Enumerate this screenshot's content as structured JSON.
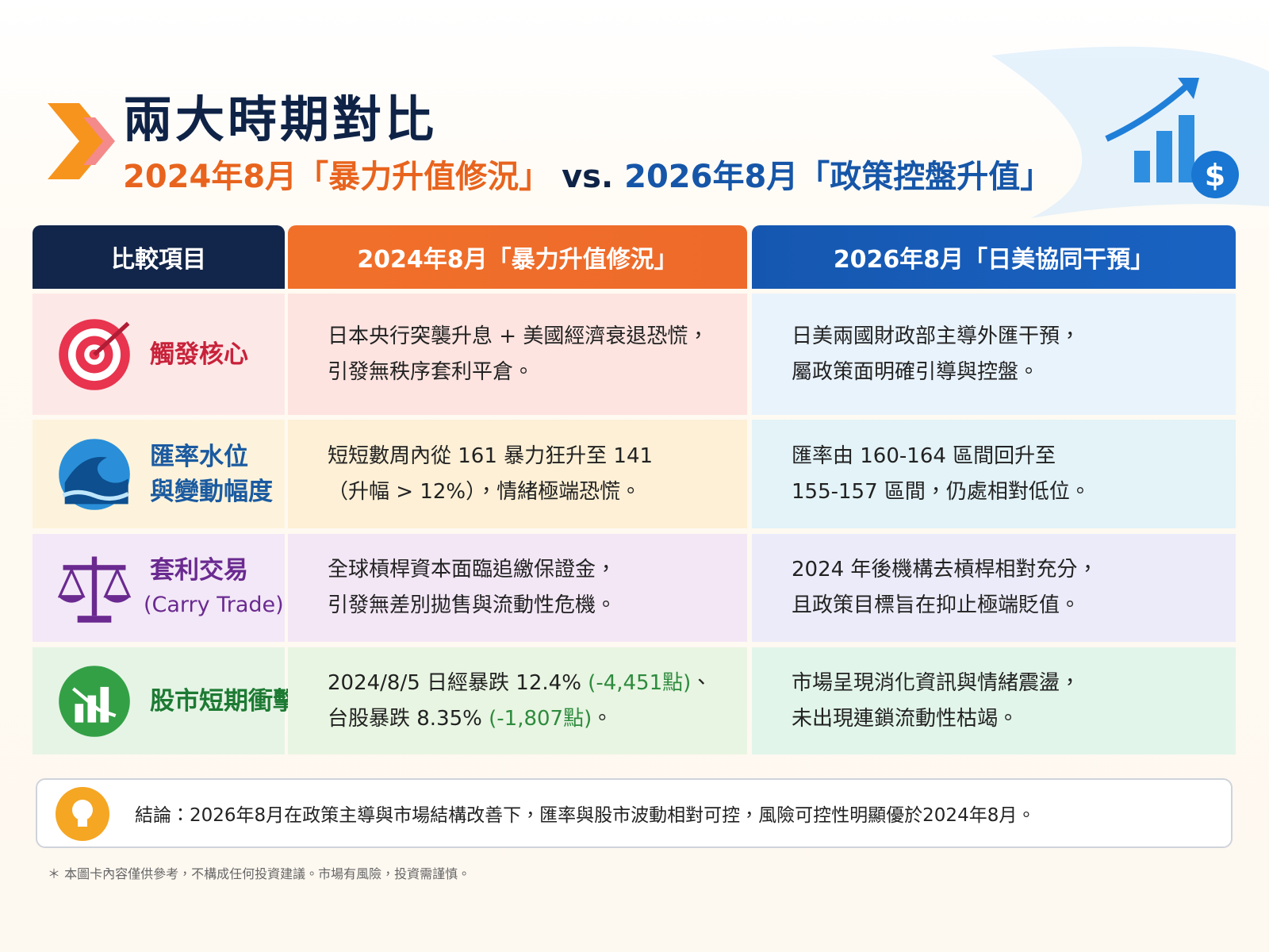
{
  "header": {
    "title": "兩大時期對比",
    "subtitle": [
      "2024年8月「暴力升值修況」",
      "vs.",
      "2026年8月「政策控盤升值」"
    ]
  },
  "table": {
    "columns": [
      "比較項目",
      "2024年8月「暴力升值修況」",
      "2026年8月「日美協同干預」"
    ],
    "highlight_color": "#2e8b3e",
    "rows": [
      {
        "label": [
          "觸發核心"
        ],
        "left": [
          [
            "日本央行突襲升息 + 美國經濟衰退恐慌，"
          ],
          [
            "引發無秩序套利平倉。"
          ]
        ],
        "right": [
          [
            "日美兩國財政部主導外匯干預，"
          ],
          [
            "屬政策面明確引導與控盤。"
          ]
        ]
      },
      {
        "label": [
          "匯率水位",
          "與變動幅度"
        ],
        "left": [
          [
            "短短數周內從 161 暴力狂升至 141"
          ],
          [
            "（升幅 > 12%），情緒極端恐慌。"
          ]
        ],
        "right": [
          [
            "匯率由 160-164 區間回升至"
          ],
          [
            "155-157 區間，仍處相對低位。"
          ]
        ]
      },
      {
        "label": [
          "套利交易",
          "(Carry Trade)"
        ],
        "left": [
          [
            "全球槓桿資本面臨追繳保證金，"
          ],
          [
            "引發無差別拋售與流動性危機。"
          ]
        ],
        "right": [
          [
            "2024 年後機構去槓桿相對充分，"
          ],
          [
            "且政策目標旨在抑止極端貶值。"
          ]
        ]
      },
      {
        "label": [
          "股市短期衝擊"
        ],
        "left": [
          [
            "2024/8/5 日經暴跌 12.4% ",
            "(-4,451點)",
            "、"
          ],
          [
            "台股暴跌 8.35% ",
            "(-1,807點)",
            "。"
          ]
        ],
        "right": [
          [
            "市場呈現消化資訊與情緒震盪，"
          ],
          [
            "未出現連鎖流動性枯竭。"
          ]
        ]
      }
    ]
  },
  "conclusion": "結論：2026年8月在政策主導與市場結構改善下，匯率與股市波動相對可控，風險可控性明顯優於2024年8月。",
  "footnote": "＊ 本圖卡內容僅供參考，不構成任何投資建議。市場有風險，投資需謹慎。"
}
